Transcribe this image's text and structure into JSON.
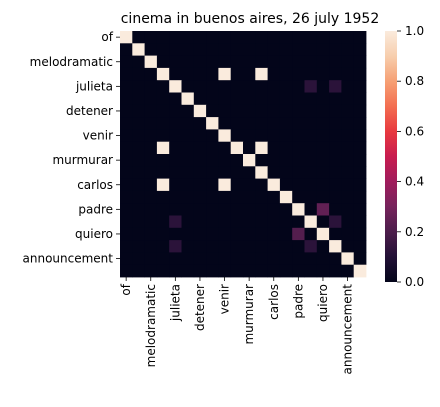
{
  "chart_data": {
    "type": "heatmap",
    "title": "cinema in buenos aires, 26 july 1952",
    "xlabel": "",
    "ylabel": "",
    "rows": [
      "of",
      "",
      "melodramatic",
      "",
      "julieta",
      "",
      "detener",
      "",
      "venir",
      "",
      "murmurar",
      "",
      "carlos",
      "",
      "padre",
      "",
      "quiero",
      "",
      "announcement",
      ""
    ],
    "cols": [
      "of",
      "",
      "melodramatic",
      "",
      "julieta",
      "",
      "detener",
      "",
      "venir",
      "",
      "murmurar",
      "",
      "carlos",
      "",
      "padre",
      "",
      "quiero",
      "",
      "announcement",
      ""
    ],
    "row_tick_labels": [
      "of",
      "melodramatic",
      "julieta",
      "detener",
      "venir",
      "murmurar",
      "carlos",
      "padre",
      "quiero",
      "announcement"
    ],
    "col_tick_labels": [
      "of",
      "melodramatic",
      "julieta",
      "detener",
      "venir",
      "murmurar",
      "carlos",
      "padre",
      "quiero",
      "announcement"
    ],
    "values": [
      [
        1,
        0,
        0,
        0,
        0,
        0,
        0,
        0,
        0,
        0,
        0,
        0,
        0,
        0,
        0,
        0,
        0,
        0,
        0,
        0
      ],
      [
        0,
        1,
        0,
        0,
        0,
        0,
        0,
        0,
        0,
        0,
        0,
        0,
        0,
        0,
        0,
        0,
        0,
        0,
        0,
        0
      ],
      [
        0,
        0,
        1,
        0,
        0,
        0,
        0,
        0,
        0,
        0,
        0,
        0,
        0,
        0,
        0,
        0,
        0,
        0,
        0,
        0
      ],
      [
        0,
        0,
        0,
        1,
        0,
        0,
        0,
        0,
        1,
        0,
        0,
        1,
        0,
        0,
        0,
        0,
        0,
        0,
        0,
        0
      ],
      [
        0,
        0,
        0,
        0,
        1,
        0,
        0,
        0,
        0,
        0,
        0,
        0,
        0,
        0,
        0,
        0.12,
        0,
        0.12,
        0,
        0
      ],
      [
        0,
        0,
        0,
        0,
        0,
        1,
        0,
        0,
        0,
        0,
        0,
        0,
        0,
        0,
        0,
        0,
        0,
        0,
        0,
        0
      ],
      [
        0,
        0,
        0,
        0,
        0,
        0,
        1,
        0,
        0,
        0,
        0,
        0,
        0,
        0,
        0,
        0,
        0,
        0,
        0,
        0
      ],
      [
        0,
        0,
        0,
        0,
        0,
        0,
        0,
        1,
        0,
        0,
        0,
        0,
        0,
        0,
        0,
        0,
        0,
        0,
        0,
        0
      ],
      [
        0,
        0,
        0,
        0,
        0,
        0,
        0,
        0,
        1,
        0,
        0,
        0,
        0,
        0,
        0,
        0,
        0,
        0,
        0,
        0
      ],
      [
        0,
        0,
        0,
        1,
        0,
        0,
        0,
        0,
        0,
        1,
        0,
        1,
        0,
        0,
        0,
        0,
        0,
        0,
        0,
        0
      ],
      [
        0,
        0,
        0,
        0,
        0,
        0,
        0,
        0,
        0,
        0,
        1,
        0,
        0,
        0,
        0,
        0,
        0,
        0,
        0,
        0
      ],
      [
        0,
        0,
        0,
        0,
        0,
        0,
        0,
        0,
        0,
        0,
        0,
        1,
        0,
        0,
        0,
        0,
        0,
        0,
        0,
        0
      ],
      [
        0,
        0,
        0,
        1,
        0,
        0,
        0,
        0,
        1,
        0,
        0,
        0,
        1,
        0,
        0,
        0,
        0,
        0,
        0,
        0
      ],
      [
        0,
        0,
        0,
        0,
        0,
        0,
        0,
        0,
        0,
        0,
        0,
        0,
        0,
        1,
        0,
        0,
        0,
        0,
        0,
        0
      ],
      [
        0,
        0,
        0,
        0,
        0,
        0,
        0,
        0,
        0,
        0,
        0,
        0,
        0,
        0,
        1,
        0,
        0.25,
        0,
        0,
        0
      ],
      [
        0,
        0,
        0,
        0,
        0.12,
        0,
        0,
        0,
        0,
        0,
        0,
        0,
        0,
        0,
        0,
        1,
        0,
        0.12,
        0,
        0
      ],
      [
        0,
        0,
        0,
        0,
        0,
        0,
        0,
        0,
        0,
        0,
        0,
        0,
        0,
        0,
        0.22,
        0,
        1,
        0,
        0,
        0
      ],
      [
        0,
        0,
        0,
        0,
        0.12,
        0,
        0,
        0,
        0,
        0,
        0,
        0,
        0,
        0,
        0,
        0.12,
        0,
        1,
        0,
        0
      ],
      [
        0,
        0,
        0,
        0,
        0,
        0,
        0,
        0,
        0,
        0,
        0,
        0,
        0,
        0,
        0,
        0,
        0,
        0,
        1,
        0
      ],
      [
        0,
        0,
        0,
        0,
        0,
        0,
        0,
        0,
        0,
        0,
        0,
        0,
        0,
        0,
        0,
        0,
        0,
        0,
        0,
        1
      ]
    ],
    "vmin": 0,
    "vmax": 1,
    "colormap": "rocket",
    "colorbar_ticks": [
      "0.0",
      "0.2",
      "0.4",
      "0.6",
      "0.8",
      "1.0"
    ],
    "legend": "right",
    "grid": false
  }
}
